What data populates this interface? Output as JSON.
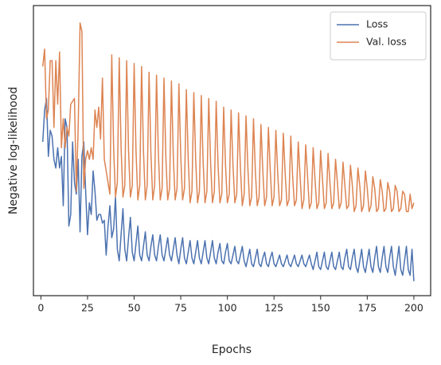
{
  "chart_data": {
    "type": "line",
    "xlabel": "Epochs",
    "ylabel": "Negative log-likelihood",
    "x": [
      1,
      2,
      3,
      4,
      5,
      6,
      7,
      8,
      9,
      10,
      11,
      12,
      13,
      14,
      15,
      16,
      17,
      18,
      19,
      20,
      21,
      22,
      23,
      24,
      25,
      26,
      27,
      28,
      29,
      30,
      31,
      32,
      33,
      34,
      35,
      36,
      37,
      38,
      39,
      40,
      41,
      42,
      43,
      44,
      45,
      46,
      47,
      48,
      49,
      50,
      51,
      52,
      53,
      54,
      55,
      56,
      57,
      58,
      59,
      60,
      61,
      62,
      63,
      64,
      65,
      66,
      67,
      68,
      69,
      70,
      71,
      72,
      73,
      74,
      75,
      76,
      77,
      78,
      79,
      80,
      81,
      82,
      83,
      84,
      85,
      86,
      87,
      88,
      89,
      90,
      91,
      92,
      93,
      94,
      95,
      96,
      97,
      98,
      99,
      100,
      101,
      102,
      103,
      104,
      105,
      106,
      107,
      108,
      109,
      110,
      111,
      112,
      113,
      114,
      115,
      116,
      117,
      118,
      119,
      120,
      121,
      122,
      123,
      124,
      125,
      126,
      127,
      128,
      129,
      130,
      131,
      132,
      133,
      134,
      135,
      136,
      137,
      138,
      139,
      140,
      141,
      142,
      143,
      144,
      145,
      146,
      147,
      148,
      149,
      150,
      151,
      152,
      153,
      154,
      155,
      156,
      157,
      158,
      159,
      160,
      161,
      162,
      163,
      164,
      165,
      166,
      167,
      168,
      169,
      170,
      171,
      172,
      173,
      174,
      175,
      176,
      177,
      178,
      179,
      180,
      181,
      182,
      183,
      184,
      185,
      186,
      187,
      188,
      189,
      190,
      191,
      192,
      193,
      194,
      195,
      196,
      197,
      198,
      199,
      200
    ],
    "series": [
      {
        "name": "Loss",
        "color": "#4c72b0",
        "values": [
          53,
          64,
          68,
          48,
          57,
          55,
          47,
          44,
          51,
          44,
          48,
          31,
          61,
          58,
          24,
          28,
          53,
          39,
          35,
          47,
          22,
          48,
          53,
          36,
          21,
          32,
          28,
          43,
          36,
          26,
          28,
          28,
          25,
          26,
          14,
          24,
          31,
          20,
          23,
          34,
          16,
          12,
          21,
          30,
          16,
          12,
          20,
          27,
          15,
          12,
          18,
          24,
          14,
          12,
          17,
          22,
          14,
          12,
          17,
          21,
          14,
          12,
          17,
          21,
          14,
          12,
          16,
          20,
          14,
          12,
          16,
          20,
          14,
          11,
          16,
          20,
          13,
          11,
          15,
          19,
          13,
          11,
          15,
          19,
          13,
          11,
          15,
          19,
          13,
          11,
          15,
          19,
          13,
          11,
          15,
          18,
          12,
          11,
          15,
          18,
          12,
          11,
          14,
          17,
          12,
          11,
          14,
          17,
          12,
          10,
          13,
          16,
          11,
          10,
          13,
          16,
          11,
          10,
          13,
          15,
          11,
          10,
          13,
          15,
          11,
          10,
          12,
          14,
          11,
          10,
          12,
          14,
          11,
          10,
          12,
          14,
          11,
          10,
          12,
          14,
          11,
          10,
          12,
          14,
          11,
          9,
          12,
          15,
          10,
          9,
          12,
          15,
          10,
          9,
          12,
          15,
          10,
          9,
          12,
          15,
          10,
          9,
          13,
          16,
          10,
          9,
          13,
          16,
          10,
          8,
          12,
          16,
          10,
          8,
          12,
          16,
          10,
          8,
          13,
          17,
          10,
          8,
          13,
          17,
          10,
          8,
          13,
          17,
          10,
          7,
          12,
          17,
          9,
          7,
          12,
          17,
          9,
          7,
          16,
          5
        ]
      },
      {
        "name": "Val. loss",
        "color": "#dd8452",
        "values": [
          79,
          85,
          61,
          64,
          81,
          81,
          58,
          81,
          66,
          84,
          51,
          61,
          51,
          58,
          55,
          66,
          67,
          68,
          36,
          58,
          94,
          91,
          37,
          47,
          50,
          47,
          51,
          47,
          64,
          58,
          65,
          54,
          75,
          47,
          43,
          39,
          35,
          83,
          51,
          34,
          39,
          82,
          51,
          34,
          38,
          81,
          50,
          34,
          38,
          80,
          50,
          33,
          38,
          79,
          50,
          33,
          38,
          77,
          49,
          33,
          38,
          76,
          49,
          33,
          37,
          75,
          48,
          33,
          37,
          74,
          48,
          33,
          37,
          73,
          48,
          33,
          37,
          71,
          47,
          32,
          36,
          70,
          47,
          32,
          36,
          69,
          46,
          32,
          36,
          68,
          46,
          32,
          36,
          67,
          45,
          32,
          35,
          65,
          45,
          32,
          35,
          64,
          45,
          32,
          35,
          63,
          44,
          31,
          35,
          62,
          44,
          31,
          34,
          61,
          43,
          31,
          34,
          59,
          43,
          31,
          34,
          58,
          43,
          31,
          34,
          57,
          42,
          31,
          33,
          56,
          42,
          31,
          33,
          55,
          41,
          31,
          33,
          53,
          41,
          30,
          33,
          52,
          41,
          30,
          32,
          51,
          40,
          30,
          32,
          50,
          40,
          30,
          32,
          49,
          39,
          30,
          32,
          47,
          39,
          30,
          32,
          46,
          38,
          30,
          31,
          45,
          38,
          29,
          31,
          44,
          38,
          29,
          31,
          43,
          37,
          29,
          31,
          41,
          37,
          29,
          30,
          40,
          36,
          29,
          30,
          39,
          36,
          29,
          30,
          38,
          36,
          29,
          30,
          36,
          35,
          29,
          29,
          35,
          30,
          32
        ]
      }
    ],
    "xlim": [
      -4,
      209
    ],
    "xticks": [
      0,
      25,
      50,
      75,
      100,
      125,
      150,
      175,
      200
    ],
    "ylim": [
      0,
      100
    ],
    "legend": "upper right",
    "grid": false
  }
}
